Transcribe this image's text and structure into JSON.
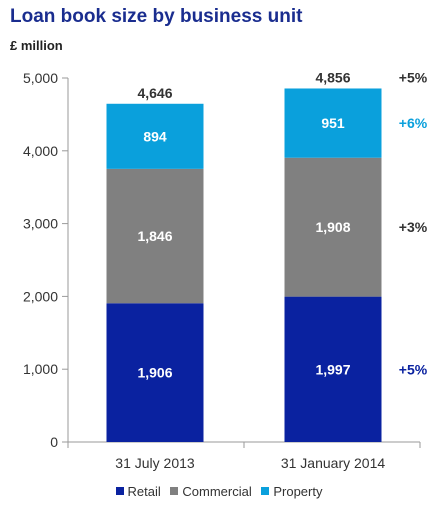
{
  "chart_data": {
    "type": "bar",
    "stacked": true,
    "title": "Loan book size by business unit",
    "ylabel": "£ million",
    "xlabel": "",
    "categories": [
      "31 July 2013",
      "31 January 2014"
    ],
    "series": [
      {
        "name": "Retail",
        "values": [
          1906,
          1997
        ],
        "color": "#0a22a0"
      },
      {
        "name": "Commercial",
        "values": [
          1846,
          1908
        ],
        "color": "#808080"
      },
      {
        "name": "Property",
        "values": [
          894,
          951
        ],
        "color": "#0aa0dc"
      }
    ],
    "totals": [
      4646,
      4856
    ],
    "value_labels": {
      "series": [
        [
          "1,906",
          "1,997"
        ],
        [
          "1,846",
          "1,908"
        ],
        [
          "894",
          "951"
        ]
      ],
      "totals": [
        "4,646",
        "4,856"
      ]
    },
    "growth": [
      {
        "label": "+5%",
        "color": "#333333",
        "target": "total"
      },
      {
        "label": "+6%",
        "color": "#0aa0dc",
        "target": "Property"
      },
      {
        "label": "+3%",
        "color": "#333333",
        "target": "Commercial"
      },
      {
        "label": "+5%",
        "color": "#0a22a0",
        "target": "Retail"
      }
    ],
    "ylim": [
      0,
      5000
    ],
    "yticks": [
      {
        "value": 0,
        "label": "0"
      },
      {
        "value": 1000,
        "label": "1,000"
      },
      {
        "value": 2000,
        "label": "2,000"
      },
      {
        "value": 3000,
        "label": "3,000"
      },
      {
        "value": 4000,
        "label": "4,000"
      },
      {
        "value": 5000,
        "label": "5,000"
      }
    ],
    "grid": false,
    "legend_position": "bottom"
  }
}
